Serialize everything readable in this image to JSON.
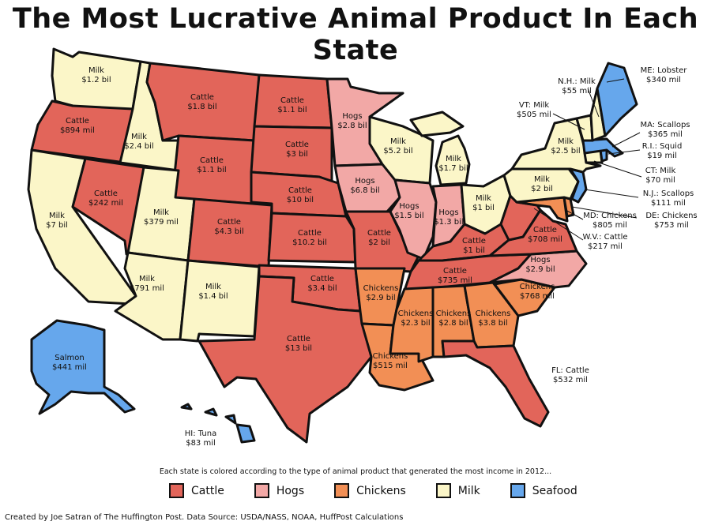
{
  "title": "The Most Lucrative Animal Product In Each State",
  "caption": "Each state is colored according to the type of animal product that generated the most income in 2012...",
  "credit": "Created by Joe Satran of The Huffington Post. Data Source: USDA/NASS, NOAA, HuffPost Calculations",
  "colors": {
    "cattle": "#e2655a",
    "hogs": "#f2a8a6",
    "chickens": "#f28f55",
    "milk": "#fbf6c8",
    "seafood": "#66a7ec"
  },
  "legend": [
    {
      "key": "cattle",
      "label": "Cattle"
    },
    {
      "key": "hogs",
      "label": "Hogs"
    },
    {
      "key": "chickens",
      "label": "Chickens"
    },
    {
      "key": "milk",
      "label": "Milk"
    },
    {
      "key": "seafood",
      "label": "Seafood"
    }
  ],
  "states": {
    "WA": {
      "product": "Milk",
      "value": "$1.2 bil",
      "type": "milk"
    },
    "OR": {
      "product": "Cattle",
      "value": "$894 mil",
      "type": "cattle"
    },
    "CA": {
      "product": "Milk",
      "value": "$7 bil",
      "type": "milk"
    },
    "ID": {
      "product": "Milk",
      "value": "$2.4 bil",
      "type": "milk"
    },
    "NV": {
      "product": "Cattle",
      "value": "$242 mil",
      "type": "cattle"
    },
    "MT": {
      "product": "Cattle",
      "value": "$1.8 bil",
      "type": "cattle"
    },
    "WY": {
      "product": "Cattle",
      "value": "$1.1 bil",
      "type": "cattle"
    },
    "UT": {
      "product": "Milk",
      "value": "$379 mil",
      "type": "milk"
    },
    "AZ": {
      "product": "Milk",
      "value": "$791 mil",
      "type": "milk"
    },
    "CO": {
      "product": "Cattle",
      "value": "$4.3 bil",
      "type": "cattle"
    },
    "NM": {
      "product": "Milk",
      "value": "$1.4 bil",
      "type": "milk"
    },
    "ND": {
      "product": "Cattle",
      "value": "$1.1 bil",
      "type": "cattle"
    },
    "SD": {
      "product": "Cattle",
      "value": "$3 bil",
      "type": "cattle"
    },
    "NE": {
      "product": "Cattle",
      "value": "$10 bil",
      "type": "cattle"
    },
    "KS": {
      "product": "Cattle",
      "value": "$10.2 bil",
      "type": "cattle"
    },
    "OK": {
      "product": "Cattle",
      "value": "$3.4 bil",
      "type": "cattle"
    },
    "TX": {
      "product": "Cattle",
      "value": "$13 bil",
      "type": "cattle"
    },
    "MN": {
      "product": "Hogs",
      "value": "$2.8 bil",
      "type": "hogs"
    },
    "IA": {
      "product": "Hogs",
      "value": "$6.8 bil",
      "type": "hogs"
    },
    "MO": {
      "product": "Cattle",
      "value": "$2 bil",
      "type": "cattle"
    },
    "AR": {
      "product": "Chickens",
      "value": "$2.9 bil",
      "type": "chickens"
    },
    "LA": {
      "product": "Chickens",
      "value": "$515 mil",
      "type": "chickens"
    },
    "WI": {
      "product": "Milk",
      "value": "$5.2 bil",
      "type": "milk"
    },
    "IL": {
      "product": "Hogs",
      "value": "$1.5 bil",
      "type": "hogs"
    },
    "MI": {
      "product": "Milk",
      "value": "$1.7 bil",
      "type": "milk"
    },
    "IN": {
      "product": "Hogs",
      "value": "$1.3 bil",
      "type": "hogs"
    },
    "OH": {
      "product": "Milk",
      "value": "$1 bil",
      "type": "milk"
    },
    "KY": {
      "product": "Cattle",
      "value": "$1 bil",
      "type": "cattle"
    },
    "TN": {
      "product": "Cattle",
      "value": "$735 mil",
      "type": "cattle"
    },
    "MS": {
      "product": "Chickens",
      "value": "$2.3 bil",
      "type": "chickens"
    },
    "AL": {
      "product": "Chickens",
      "value": "$2.8 bil",
      "type": "chickens"
    },
    "GA": {
      "product": "Chickens",
      "value": "$3.8 bil",
      "type": "chickens"
    },
    "FL": {
      "product": "FL: Cattle",
      "value": "$532 mil",
      "type": "cattle"
    },
    "SC": {
      "product": "Chickens",
      "value": "$768 mil",
      "type": "chickens"
    },
    "NC": {
      "product": "Hogs",
      "value": "$2.9 bil",
      "type": "hogs"
    },
    "VA": {
      "product": "Cattle",
      "value": "$708 mil",
      "type": "cattle"
    },
    "WV": {
      "product": "W.V.: Cattle",
      "value": "$217 mil",
      "type": "cattle"
    },
    "MD": {
      "product": "MD: Chickens",
      "value": "$805 mil",
      "type": "chickens"
    },
    "DE": {
      "product": "DE: Chickens",
      "value": "$753 mil",
      "type": "chickens"
    },
    "PA": {
      "product": "Milk",
      "value": "$2 bil",
      "type": "milk"
    },
    "NJ": {
      "product": "N.J.: Scallops",
      "value": "$111 mil",
      "type": "seafood"
    },
    "NY": {
      "product": "Milk",
      "value": "$2.5 bil",
      "type": "milk"
    },
    "CT": {
      "product": "CT: Milk",
      "value": "$70 mil",
      "type": "milk"
    },
    "RI": {
      "product": "R.I.: Squid",
      "value": "$19 mil",
      "type": "seafood"
    },
    "MA": {
      "product": "MA: Scallops",
      "value": "$365 mil",
      "type": "seafood"
    },
    "VT": {
      "product": "VT: Milk",
      "value": "$505 mil",
      "type": "milk"
    },
    "NH": {
      "product": "N.H.: Milk",
      "value": "$55 mil",
      "type": "milk"
    },
    "ME": {
      "product": "ME: Lobster",
      "value": "$340 mil",
      "type": "seafood"
    },
    "AK": {
      "product": "Salmon",
      "value": "$441 mil",
      "type": "seafood"
    },
    "HI": {
      "product": "HI: Tuna",
      "value": "$83 mil",
      "type": "seafood"
    }
  }
}
